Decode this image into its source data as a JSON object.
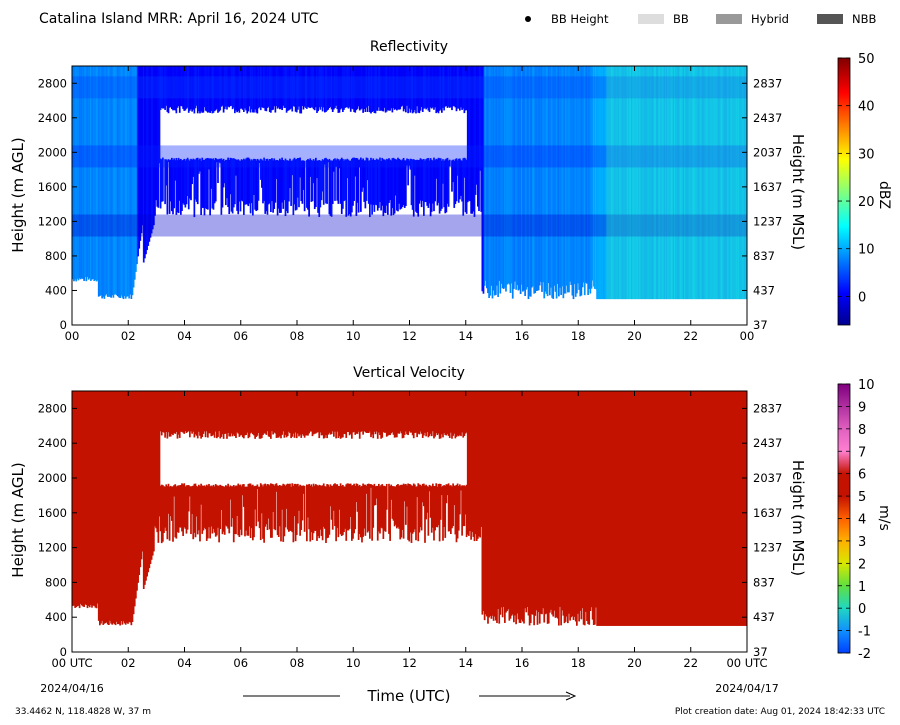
{
  "title": "Catalina Island MRR:  April 16, 2024 UTC",
  "legend": {
    "bb_height": "BB Height",
    "bb": "BB",
    "hybrid": "Hybrid",
    "nbb": "NBB",
    "colors": {
      "bb": "#dddddd",
      "hybrid": "#999999",
      "nbb": "#555555"
    }
  },
  "chart_data": [
    {
      "type": "heatmap",
      "title": "Reflectivity",
      "ylabel": "Height (m AGL)",
      "ylabel_right": "Height (m MSL)",
      "x_ticks": [
        "00",
        "02",
        "04",
        "06",
        "08",
        "10",
        "12",
        "14",
        "16",
        "18",
        "20",
        "22",
        "00"
      ],
      "y_ticks": [
        0,
        400,
        800,
        1200,
        1600,
        2000,
        2400,
        2800
      ],
      "y_ticks_right": [
        37,
        437,
        837,
        1237,
        1637,
        2037,
        2437,
        2837
      ],
      "xlim_hours": [
        0,
        24
      ],
      "ylim": [
        0,
        3000
      ],
      "colorbar": {
        "label": "dBZ",
        "range": [
          -6,
          50
        ],
        "ticks": [
          0,
          10,
          20,
          30,
          40,
          50
        ],
        "colormap": "jet"
      },
      "regions": [
        {
          "x": [
            0.0,
            2.3
          ],
          "y": [
            300,
            3000
          ],
          "mean_dbz": 8
        },
        {
          "x": [
            2.3,
            14.6
          ],
          "y": [
            1300,
            3000
          ],
          "mean_dbz": 1,
          "gap_y": [
            1900,
            2500
          ]
        },
        {
          "x": [
            2.5,
            14.6
          ],
          "y": [
            1200,
            1300
          ],
          "mean_dbz": 0
        },
        {
          "x": [
            14.6,
            18.5
          ],
          "y": [
            300,
            3000
          ],
          "mean_dbz": 8
        },
        {
          "x": [
            18.5,
            24.0
          ],
          "y": [
            300,
            3000
          ],
          "mean_dbz": 10
        }
      ]
    },
    {
      "type": "heatmap",
      "title": "Vertical Velocity",
      "ylabel": "Height (m AGL)",
      "ylabel_right": "Height (m MSL)",
      "x_ticks": [
        "00 UTC",
        "02",
        "04",
        "06",
        "08",
        "10",
        "12",
        "14",
        "16",
        "18",
        "20",
        "22",
        "00 UTC"
      ],
      "x_dates": [
        "2024/04/16",
        "2024/04/17"
      ],
      "xlabel": "Time (UTC)",
      "y_ticks": [
        0,
        400,
        800,
        1200,
        1600,
        2000,
        2400,
        2800
      ],
      "y_ticks_right": [
        37,
        437,
        837,
        1237,
        1637,
        2037,
        2437,
        2837
      ],
      "xlim_hours": [
        0,
        24
      ],
      "ylim": [
        0,
        3000
      ],
      "colorbar": {
        "label": "m/s",
        "range": [
          -2,
          10
        ],
        "ticks": [
          -2,
          -1,
          0,
          1,
          2,
          3,
          4,
          5,
          6,
          7,
          8,
          9,
          10
        ]
      },
      "fill_color": "#c41200",
      "fill_value_ms": 6
    }
  ],
  "footer": {
    "location": "33.4462 N, 118.4828 W, 37 m",
    "creation": "Plot creation date: Aug 01, 2024 18:42:33 UTC"
  }
}
